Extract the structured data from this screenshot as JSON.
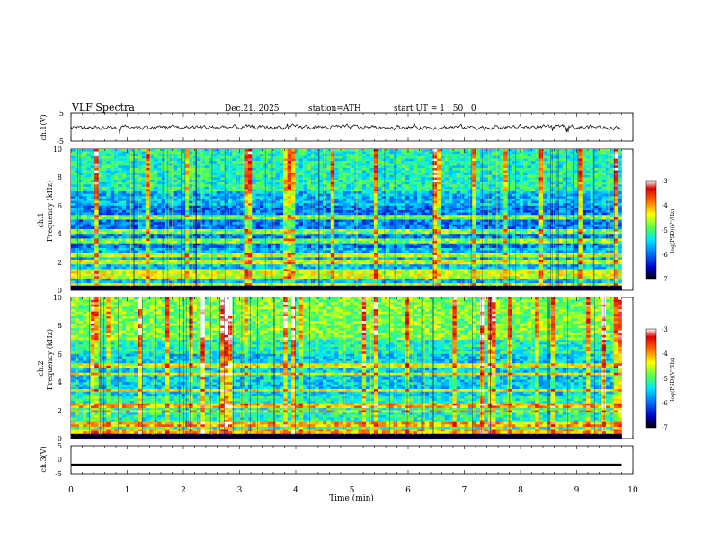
{
  "header": {
    "title": "VLF  Spectra",
    "date": "Dec.21, 2025",
    "station": "station=ATH",
    "start": "start  UT  =   1 : 50 : 0"
  },
  "chart_data": [
    {
      "type": "line",
      "panel": "ch1-waveform",
      "ylabel": "ch.1(V)",
      "ylim": [
        -5,
        5
      ],
      "ytick_labels": [
        "5",
        "-5"
      ],
      "x": [
        0,
        10
      ],
      "values_approx": "noisy waveform centered near 0 V, amplitude about ±1 V, data ends at ~9.8 min"
    },
    {
      "type": "heatmap",
      "panel": "ch1-spectrogram",
      "ylabel": "ch.1\nFrequency (kHz)",
      "ylim": [
        0,
        10
      ],
      "ytick_labels": [
        "0",
        "2",
        "4",
        "6",
        "8",
        "10"
      ],
      "colorbar": {
        "label": "log(PSD)(V²/Hz)",
        "range": [
          -7,
          -3
        ],
        "tick_labels": [
          "-3",
          "-4",
          "-5",
          "-6",
          "-7"
        ],
        "colors": [
          "#000000",
          "#0000c8",
          "#0078ff",
          "#00e6ff",
          "#50ff50",
          "#ffff00",
          "#ff6400",
          "#dc0000",
          "#ffffff"
        ]
      },
      "features": {
        "bands_khz": [
          0.3,
          1.0,
          1.3,
          2.0,
          2.5,
          3.5,
          4.2,
          5.2
        ],
        "background_level": -5.6,
        "vertical_streaks": "numerous broadband sferics"
      }
    },
    {
      "type": "heatmap",
      "panel": "ch2-spectrogram",
      "ylabel": "ch.2\nFrequency (kHz)",
      "ylim": [
        0,
        10
      ],
      "ytick_labels": [
        "0",
        "2",
        "4",
        "6",
        "8",
        "10"
      ],
      "colorbar": {
        "label": "log(PSD)(V²/Hz)",
        "range": [
          -7,
          -3
        ],
        "tick_labels": [
          "-3",
          "-4",
          "-5",
          "-6",
          "-7"
        ]
      },
      "features": {
        "bands_khz": [
          0.5,
          1.0,
          1.9,
          2.3,
          3.4,
          4.6,
          5.2
        ],
        "background_level": -5.2,
        "vertical_streaks": "numerous broadband sferics"
      }
    },
    {
      "type": "line",
      "panel": "ch3-waveform",
      "ylabel": "ch.3(V)",
      "ylim": [
        -5,
        5
      ],
      "ytick_labels": [
        "5",
        "0",
        "-5"
      ],
      "x": [
        0,
        9.8
      ],
      "values": [
        -1.9,
        -1.9
      ]
    }
  ],
  "x_axis": {
    "label": "Time  (min)",
    "range": [
      0,
      10
    ],
    "tick_labels": [
      "0",
      "1",
      "2",
      "3",
      "4",
      "5",
      "6",
      "7",
      "8",
      "9",
      "10"
    ]
  }
}
